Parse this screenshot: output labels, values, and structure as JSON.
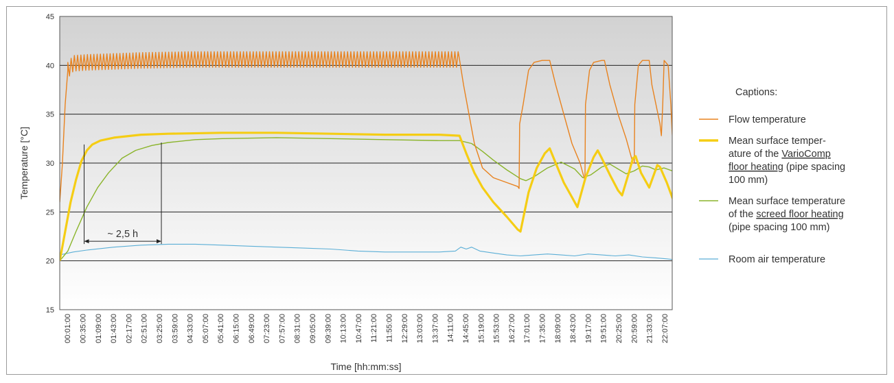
{
  "chart_data": {
    "type": "line",
    "xlabel": "Time [hh:mm:ss]",
    "ylabel": "Temperature [°C]",
    "ylim": [
      15,
      45
    ],
    "yticks": [
      15,
      20,
      25,
      30,
      35,
      40,
      45
    ],
    "grid": "horizontal",
    "legend_position": "right",
    "legend_title": "Captions:",
    "x_tick_labels": [
      "00:01:00",
      "00:35:00",
      "01:09:00",
      "01:43:00",
      "02:17:00",
      "02:51:00",
      "03:25:00",
      "03:59:00",
      "04:33:00",
      "05:07:00",
      "05:41:00",
      "06:15:00",
      "06:49:00",
      "07:23:00",
      "07:57:00",
      "08:31:00",
      "09:05:00",
      "09:39:00",
      "10:13:00",
      "10:47:00",
      "11:21:00",
      "11:55:00",
      "12:29:00",
      "13:03:00",
      "13:37:00",
      "14:11:00",
      "14:45:00",
      "15:19:00",
      "15:53:00",
      "16:27:00",
      "17:01:00",
      "17:35:00",
      "18:09:00",
      "18:43:00",
      "19:17:00",
      "19:51:00",
      "20:25:00",
      "20:59:00",
      "21:33:00",
      "22:07:00"
    ],
    "x_range_hours": [
      0.0,
      22.6
    ],
    "annotation": {
      "text": "~ 2,5 h",
      "x_start_hours": 0.9,
      "x_end_hours": 3.75,
      "y": 22
    },
    "series": [
      {
        "name": "Flow temperature",
        "color": "#e8821e",
        "oscillation": {
          "x_start": 0.3,
          "x_end": 14.75,
          "amplitude": 0.8,
          "period_hours": 0.12
        },
        "points": [
          [
            0.0,
            26
          ],
          [
            0.05,
            28
          ],
          [
            0.1,
            30
          ],
          [
            0.15,
            33
          ],
          [
            0.2,
            36
          ],
          [
            0.3,
            39.5
          ],
          [
            0.5,
            40.2
          ],
          [
            1.0,
            40.3
          ],
          [
            3.0,
            40.5
          ],
          [
            5.0,
            40.6
          ],
          [
            8.0,
            40.6
          ],
          [
            11.0,
            40.6
          ],
          [
            14.0,
            40.6
          ],
          [
            14.75,
            40.6
          ],
          [
            14.9,
            38
          ],
          [
            15.1,
            35
          ],
          [
            15.3,
            32
          ],
          [
            15.6,
            29.5
          ],
          [
            16.0,
            28.5
          ],
          [
            16.5,
            28
          ],
          [
            16.9,
            27.6
          ],
          [
            16.95,
            27.4
          ],
          [
            16.97,
            34
          ],
          [
            17.1,
            36
          ],
          [
            17.3,
            39.5
          ],
          [
            17.5,
            40.3
          ],
          [
            17.8,
            40.5
          ],
          [
            18.08,
            40.5
          ],
          [
            18.3,
            38
          ],
          [
            18.6,
            35
          ],
          [
            18.9,
            32
          ],
          [
            19.2,
            30
          ],
          [
            19.38,
            28.2
          ],
          [
            19.4,
            36
          ],
          [
            19.55,
            39.5
          ],
          [
            19.7,
            40.3
          ],
          [
            20.0,
            40.5
          ],
          [
            20.1,
            40.5
          ],
          [
            20.3,
            38
          ],
          [
            20.6,
            35
          ],
          [
            20.9,
            32.5
          ],
          [
            21.15,
            30
          ],
          [
            21.2,
            30
          ],
          [
            21.22,
            36
          ],
          [
            21.35,
            40
          ],
          [
            21.5,
            40.5
          ],
          [
            21.75,
            40.5
          ],
          [
            21.85,
            38
          ],
          [
            22.0,
            36
          ],
          [
            22.15,
            34
          ],
          [
            22.2,
            32.8
          ],
          [
            22.25,
            36
          ],
          [
            22.3,
            40.5
          ],
          [
            22.45,
            40
          ],
          [
            22.55,
            36
          ],
          [
            22.6,
            33
          ],
          [
            22.65,
            31
          ],
          [
            22.7,
            30
          ]
        ]
      },
      {
        "name": "Mean surface temperature of the VarioComp floor heating (pipe spacing 100 mm)",
        "color": "#f5cd14",
        "points": [
          [
            0.0,
            20
          ],
          [
            0.2,
            23
          ],
          [
            0.4,
            26
          ],
          [
            0.6,
            28.3
          ],
          [
            0.8,
            30.2
          ],
          [
            1.0,
            31.3
          ],
          [
            1.2,
            31.9
          ],
          [
            1.5,
            32.3
          ],
          [
            2.0,
            32.6
          ],
          [
            3.0,
            32.9
          ],
          [
            4.0,
            33.0
          ],
          [
            6.0,
            33.1
          ],
          [
            8.0,
            33.1
          ],
          [
            10.0,
            33.0
          ],
          [
            12.0,
            32.9
          ],
          [
            14.0,
            32.9
          ],
          [
            14.75,
            32.8
          ],
          [
            15.0,
            31
          ],
          [
            15.3,
            29
          ],
          [
            15.6,
            27.5
          ],
          [
            16.0,
            26
          ],
          [
            16.5,
            24.5
          ],
          [
            16.9,
            23.2
          ],
          [
            17.0,
            23
          ],
          [
            17.3,
            27
          ],
          [
            17.6,
            29.5
          ],
          [
            17.9,
            31
          ],
          [
            18.08,
            31.5
          ],
          [
            18.3,
            30
          ],
          [
            18.6,
            28
          ],
          [
            18.9,
            26.5
          ],
          [
            19.1,
            25.5
          ],
          [
            19.4,
            28.5
          ],
          [
            19.7,
            30.6
          ],
          [
            19.85,
            31.3
          ],
          [
            20.0,
            30.5
          ],
          [
            20.3,
            28.8
          ],
          [
            20.6,
            27.2
          ],
          [
            20.75,
            26.7
          ],
          [
            21.0,
            29
          ],
          [
            21.15,
            30.5
          ],
          [
            21.25,
            30.7
          ],
          [
            21.45,
            29
          ],
          [
            21.75,
            27.5
          ],
          [
            22.05,
            29.8
          ],
          [
            22.15,
            29.6
          ],
          [
            22.4,
            28
          ],
          [
            22.6,
            26.5
          ],
          [
            22.7,
            25.8
          ]
        ]
      },
      {
        "name": "Mean surface temperature of the screed floor heating (pipe spacing 100 mm)",
        "color": "#8ab42a",
        "points": [
          [
            0.0,
            20
          ],
          [
            0.3,
            21
          ],
          [
            0.6,
            23
          ],
          [
            1.0,
            25.5
          ],
          [
            1.4,
            27.5
          ],
          [
            1.8,
            29
          ],
          [
            2.3,
            30.5
          ],
          [
            2.8,
            31.3
          ],
          [
            3.4,
            31.8
          ],
          [
            4.0,
            32.1
          ],
          [
            5.0,
            32.4
          ],
          [
            6.0,
            32.5
          ],
          [
            8.0,
            32.6
          ],
          [
            10.0,
            32.5
          ],
          [
            12.0,
            32.4
          ],
          [
            14.0,
            32.3
          ],
          [
            14.75,
            32.3
          ],
          [
            15.2,
            32
          ],
          [
            15.6,
            31.2
          ],
          [
            16.0,
            30.3
          ],
          [
            16.5,
            29.3
          ],
          [
            17.0,
            28.4
          ],
          [
            17.2,
            28.2
          ],
          [
            17.5,
            28.6
          ],
          [
            18.0,
            29.5
          ],
          [
            18.5,
            30.1
          ],
          [
            19.0,
            29.4
          ],
          [
            19.3,
            28.5
          ],
          [
            19.6,
            28.8
          ],
          [
            20.0,
            29.6
          ],
          [
            20.3,
            29.9
          ],
          [
            20.6,
            29.4
          ],
          [
            20.9,
            28.9
          ],
          [
            21.2,
            29.2
          ],
          [
            21.5,
            29.7
          ],
          [
            21.75,
            29.6
          ],
          [
            22.0,
            29.3
          ],
          [
            22.3,
            29.5
          ],
          [
            22.6,
            29.2
          ],
          [
            22.7,
            28.8
          ]
        ]
      },
      {
        "name": "Room air temperature",
        "color": "#5aaed6",
        "points": [
          [
            0.0,
            20.6
          ],
          [
            0.5,
            20.9
          ],
          [
            1.0,
            21.1
          ],
          [
            2.0,
            21.4
          ],
          [
            3.0,
            21.6
          ],
          [
            4.0,
            21.7
          ],
          [
            5.0,
            21.7
          ],
          [
            6.0,
            21.6
          ],
          [
            7.0,
            21.5
          ],
          [
            8.0,
            21.4
          ],
          [
            9.0,
            21.3
          ],
          [
            10.0,
            21.2
          ],
          [
            11.0,
            21.0
          ],
          [
            12.0,
            20.9
          ],
          [
            13.0,
            20.9
          ],
          [
            14.0,
            20.9
          ],
          [
            14.6,
            21.0
          ],
          [
            14.8,
            21.4
          ],
          [
            15.0,
            21.2
          ],
          [
            15.2,
            21.4
          ],
          [
            15.5,
            21.0
          ],
          [
            16.0,
            20.8
          ],
          [
            16.5,
            20.6
          ],
          [
            17.0,
            20.5
          ],
          [
            17.5,
            20.6
          ],
          [
            18.0,
            20.7
          ],
          [
            18.5,
            20.6
          ],
          [
            19.0,
            20.5
          ],
          [
            19.5,
            20.7
          ],
          [
            20.0,
            20.6
          ],
          [
            20.5,
            20.5
          ],
          [
            21.0,
            20.6
          ],
          [
            21.5,
            20.4
          ],
          [
            22.0,
            20.3
          ],
          [
            22.4,
            20.2
          ],
          [
            22.7,
            20.1
          ]
        ]
      }
    ],
    "legend_lines": {
      "flow": [
        "Flow temperature"
      ],
      "variocomp": [
        {
          "text": "Mean surface temper-"
        },
        {
          "text": "ature of the ",
          "underlined": "VarioComp"
        },
        {
          "underlined": "floor heating",
          "text": " (pipe spacing"
        },
        {
          "text": "100 mm)"
        }
      ],
      "screed": [
        {
          "text": "Mean surface temperature"
        },
        {
          "text": "of the ",
          "underlined": "screed floor heating"
        },
        {
          "text": "(pipe spacing 100 mm)"
        }
      ],
      "room": [
        "Room air temperature"
      ]
    }
  }
}
